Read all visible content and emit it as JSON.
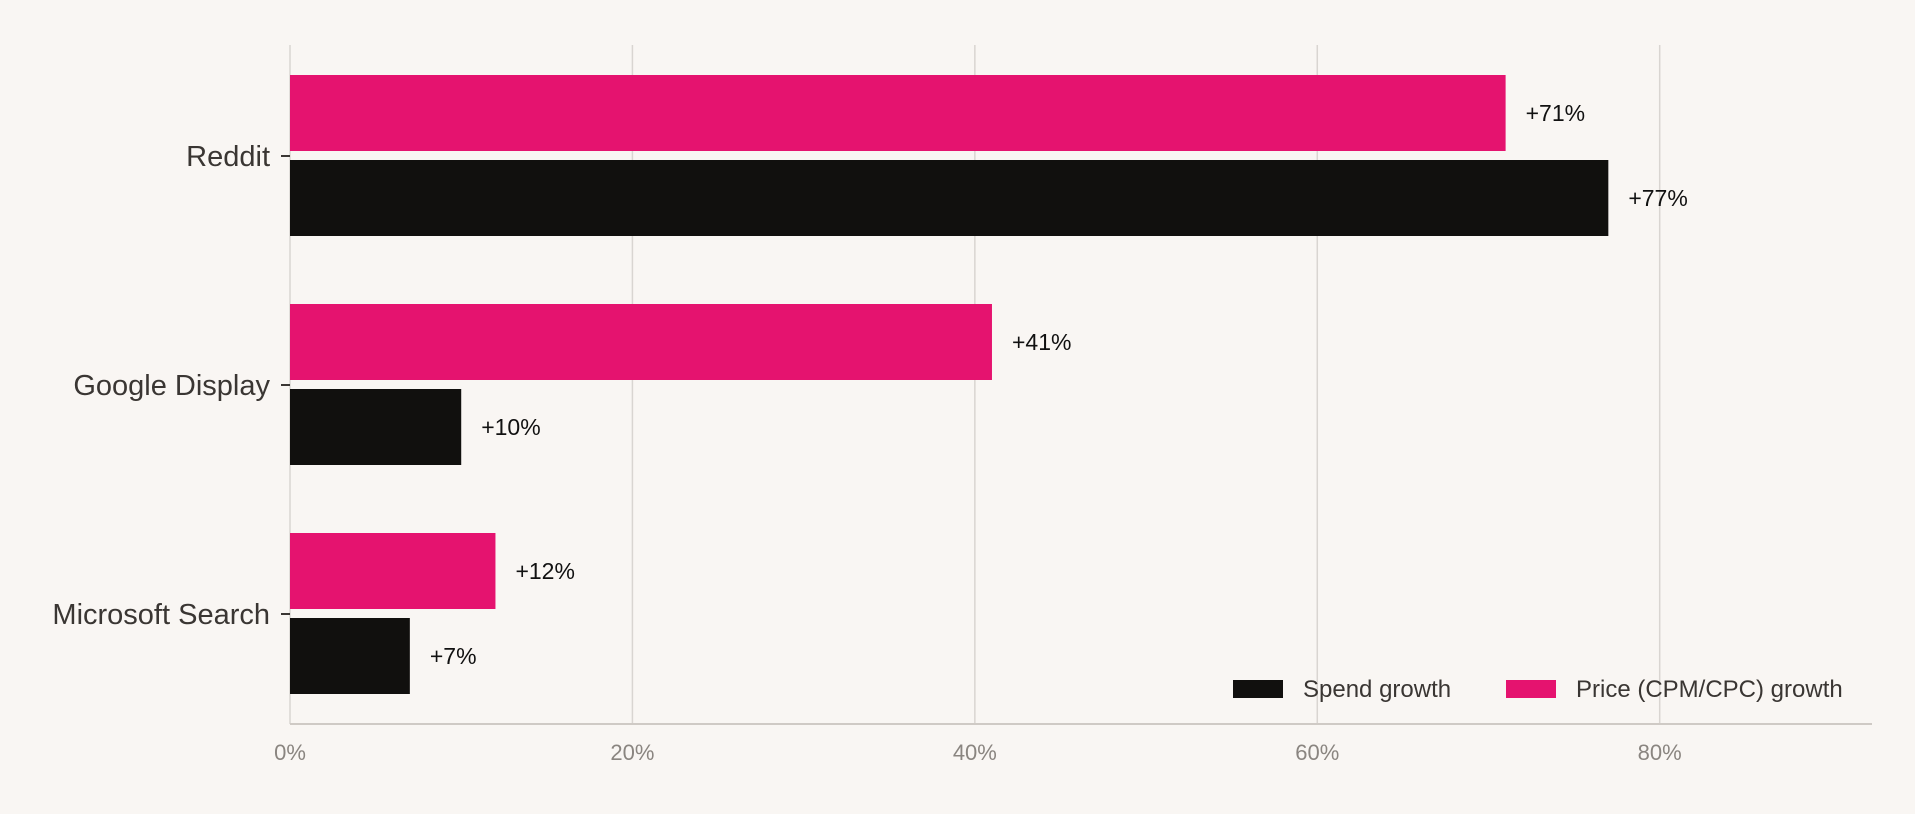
{
  "chart_data": {
    "type": "bar",
    "orientation": "horizontal",
    "categories": [
      "Reddit",
      "Google Display",
      "Microsoft Search"
    ],
    "series": [
      {
        "name": "Price (CPM/CPC) growth",
        "values": [
          71,
          41,
          12
        ],
        "labels": [
          "+71%",
          "+41%",
          "+12%"
        ],
        "color": "#e5136f"
      },
      {
        "name": "Spend growth",
        "values": [
          77,
          10,
          7
        ],
        "labels": [
          "+77%",
          "+10%",
          "+7%"
        ],
        "color": "#11100e"
      }
    ],
    "x_ticks": [
      0,
      20,
      40,
      60,
      80
    ],
    "x_tick_labels": [
      "0%",
      "20%",
      "40%",
      "60%",
      "80%"
    ],
    "xlim": [
      0,
      92.4
    ],
    "grid": true,
    "legend": {
      "position": "bottom-right",
      "items": [
        {
          "name": "Spend growth",
          "color": "#11100e"
        },
        {
          "name": "Price (CPM/CPC) growth",
          "color": "#e5136f"
        }
      ]
    },
    "title": "",
    "xlabel": "",
    "ylabel": ""
  }
}
